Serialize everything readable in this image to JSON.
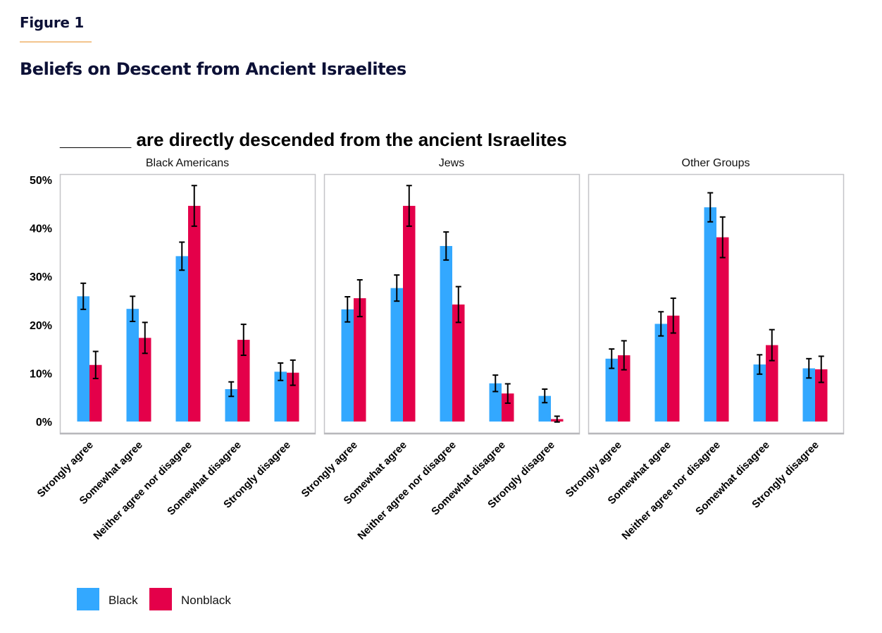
{
  "figure_label": "Figure 1",
  "figure_title": "Beliefs on Descent from Ancient Israelites",
  "colors": {
    "black": "#33a8ff",
    "nonblack": "#e4004a",
    "error_bar": "#000000",
    "panel_border": "#c4c4c8",
    "rule": "#e8912a",
    "title": "#0c1036"
  },
  "chart_data": {
    "type": "bar",
    "title": "_______ are directly descended from the ancient Israelites",
    "ylim": [
      0,
      50
    ],
    "yticks": [
      0,
      10,
      20,
      30,
      40,
      50
    ],
    "ytick_labels": [
      "0%",
      "10%",
      "20%",
      "30%",
      "40%",
      "50%"
    ],
    "xlabel": "",
    "ylabel": "",
    "grid": false,
    "legend_position": "bottom-left",
    "categories": [
      "Strongly agree",
      "Somewhat agree",
      "Neither agree nor disagree",
      "Somewhat disagree",
      "Strongly disagree"
    ],
    "series_names": [
      "Black",
      "Nonblack"
    ],
    "panels": [
      {
        "title": "Black Americans",
        "series": [
          {
            "name": "Black",
            "values": [
              25.9,
              23.3,
              34.2,
              6.7,
              10.3
            ],
            "errors": [
              2.7,
              2.6,
              2.9,
              1.5,
              1.8
            ]
          },
          {
            "name": "Nonblack",
            "values": [
              11.7,
              17.3,
              44.6,
              16.9,
              10.1
            ],
            "errors": [
              2.8,
              3.2,
              4.2,
              3.2,
              2.6
            ]
          }
        ]
      },
      {
        "title": "Jews",
        "series": [
          {
            "name": "Black",
            "values": [
              23.2,
              27.6,
              36.3,
              7.9,
              5.3
            ],
            "errors": [
              2.6,
              2.7,
              2.9,
              1.7,
              1.4
            ]
          },
          {
            "name": "Nonblack",
            "values": [
              25.5,
              44.6,
              24.2,
              5.8,
              0.5
            ],
            "errors": [
              3.8,
              4.2,
              3.7,
              2.0,
              0.6
            ]
          }
        ]
      },
      {
        "title": "Other Groups",
        "series": [
          {
            "name": "Black",
            "values": [
              13.0,
              20.2,
              44.3,
              11.8,
              11.0
            ],
            "errors": [
              2.0,
              2.5,
              3.0,
              2.0,
              2.0
            ]
          },
          {
            "name": "Nonblack",
            "values": [
              13.7,
              21.9,
              38.1,
              15.8,
              10.8
            ],
            "errors": [
              3.0,
              3.6,
              4.2,
              3.2,
              2.7
            ]
          }
        ]
      }
    ]
  }
}
